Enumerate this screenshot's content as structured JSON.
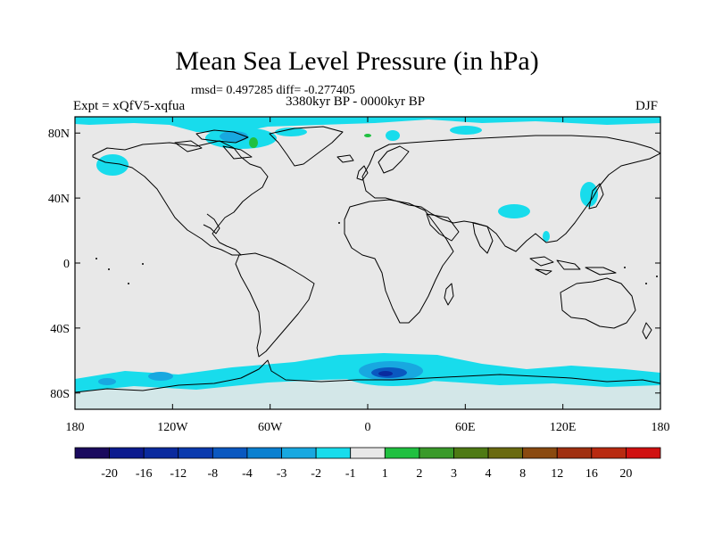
{
  "title": "Mean Sea Level Pressure (in hPa)",
  "stats": "rmsd= 0.497285 diff= -0.277405",
  "expt": "Expt = xQfV5-xqfua",
  "period": "3380kyr BP - 0000kyr BP",
  "season": "DJF",
  "lat_labels": [
    "80N",
    "40N",
    "0",
    "40S",
    "80S"
  ],
  "lat_values": [
    80,
    40,
    0,
    -40,
    -80
  ],
  "lon_labels": [
    "180",
    "120W",
    "60W",
    "0",
    "60E",
    "120E",
    "180"
  ],
  "lon_values": [
    -180,
    -120,
    -60,
    0,
    60,
    120,
    180
  ],
  "lat_range": [
    -90,
    90
  ],
  "lon_range": [
    -180,
    180
  ],
  "colorbar": {
    "labels": [
      "-20",
      "-16",
      "-12",
      "-8",
      "-4",
      "-3",
      "-2",
      "-1",
      "1",
      "2",
      "3",
      "4",
      "8",
      "12",
      "16",
      "20"
    ],
    "colors": [
      "#1a0a5e",
      "#0c1a8e",
      "#0a2a9e",
      "#0a3aae",
      "#0a58c0",
      "#0a80d0",
      "#18a8e0",
      "#18dcec",
      "#e8e8e8",
      "#20c040",
      "#3a9a2a",
      "#4e7a14",
      "#6a6a10",
      "#8a4a10",
      "#a03010",
      "#b82a10",
      "#d01010"
    ]
  },
  "colors": {
    "background": "#e8e8e8",
    "coast": "#000000",
    "light_blue": "#18dcec",
    "mid_blue": "#18a8e0",
    "blue": "#0a80d0",
    "green": "#20c040"
  }
}
